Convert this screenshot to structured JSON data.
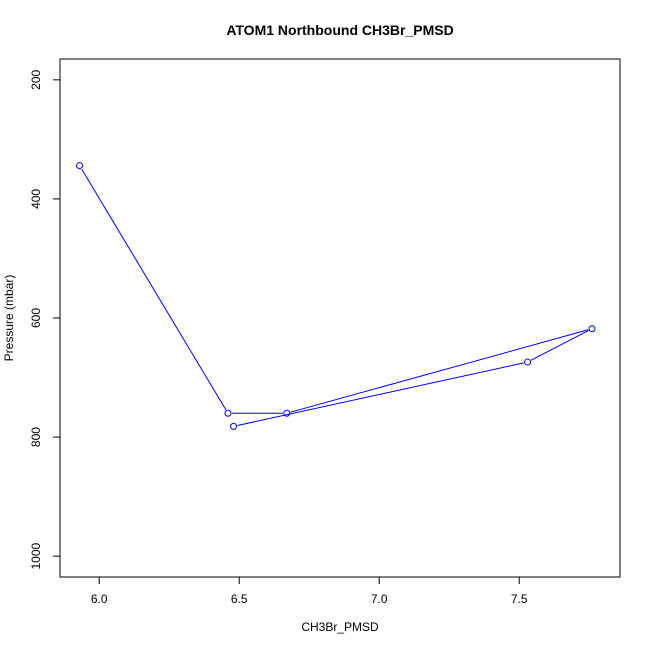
{
  "chart_data": {
    "type": "line",
    "title": "ATOM1 Northbound CH3Br_PMSD",
    "xlabel": "CH3Br_PMSD",
    "ylabel": "Pressure (mbar)",
    "xlim": [
      5.86,
      7.86
    ],
    "ylim": [
      1035,
      165
    ],
    "y_inverted": true,
    "xticks": [
      6.0,
      6.5,
      7.0,
      7.5
    ],
    "xtick_labels": [
      "6.0",
      "6.5",
      "7.0",
      "7.5"
    ],
    "yticks": [
      200,
      400,
      600,
      800,
      1000
    ],
    "ytick_labels": [
      "200",
      "400",
      "600",
      "800",
      "1000"
    ],
    "grid": false,
    "line_style": "line-with-open-circle-markers",
    "series": [
      {
        "color": "#0000ff",
        "points": [
          {
            "x": 5.93,
            "y": 344
          },
          {
            "x": 6.46,
            "y": 760
          },
          {
            "x": 6.67,
            "y": 760
          },
          {
            "x": 7.76,
            "y": 618
          },
          {
            "x": 7.53,
            "y": 674
          },
          {
            "x": 6.48,
            "y": 782
          }
        ]
      }
    ]
  }
}
